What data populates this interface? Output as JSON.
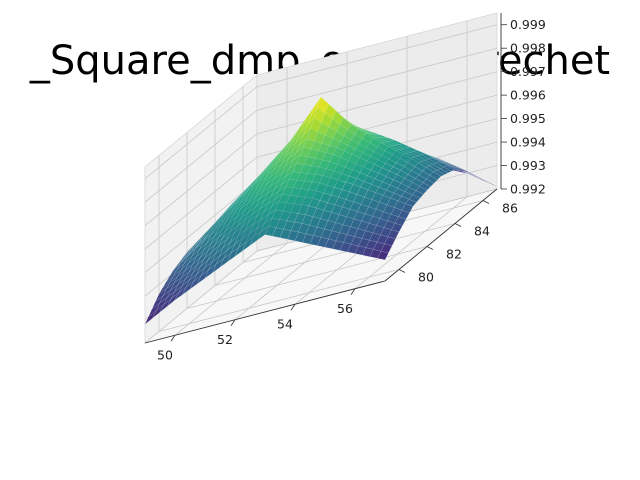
{
  "chart_data": {
    "type": "surface",
    "title": "_Square_dmp_on LTE Frechet",
    "xlabel": "",
    "ylabel": "",
    "zlabel": "",
    "x": [
      49,
      50,
      51,
      52,
      53,
      54,
      55,
      56,
      57
    ],
    "y": [
      79,
      80,
      81,
      82,
      83,
      84,
      85,
      86,
      87
    ],
    "xticks": [
      50,
      52,
      54,
      56
    ],
    "yticks": [
      80,
      82,
      84,
      86
    ],
    "zticks": [
      0.992,
      0.993,
      0.994,
      0.995,
      0.996,
      0.997,
      0.998,
      0.999
    ],
    "zlim": [
      0.992,
      0.9995
    ],
    "z": [
      [
        0.9928,
        0.9935,
        0.9941,
        0.9947,
        0.9953,
        0.9947,
        0.9941,
        0.9935,
        0.9929
      ],
      [
        0.9936,
        0.9942,
        0.995,
        0.9957,
        0.9962,
        0.9957,
        0.995,
        0.9943,
        0.9936
      ],
      [
        0.9941,
        0.995,
        0.9958,
        0.9965,
        0.997,
        0.9965,
        0.9958,
        0.995,
        0.9942
      ],
      [
        0.9944,
        0.9954,
        0.9963,
        0.9972,
        0.9979,
        0.9972,
        0.9963,
        0.9954,
        0.9944
      ],
      [
        0.9945,
        0.9956,
        0.9966,
        0.9977,
        0.9992,
        0.9977,
        0.9966,
        0.9956,
        0.9945
      ],
      [
        0.9943,
        0.9953,
        0.9962,
        0.997,
        0.9976,
        0.997,
        0.9962,
        0.9953,
        0.9943
      ],
      [
        0.9936,
        0.9946,
        0.9954,
        0.9961,
        0.9966,
        0.9961,
        0.9954,
        0.9946,
        0.9937
      ],
      [
        0.9928,
        0.9938,
        0.9946,
        0.9952,
        0.9955,
        0.9952,
        0.9946,
        0.9938,
        0.9929
      ],
      [
        0.9925,
        0.993,
        0.9936,
        0.9942,
        0.9944,
        0.9942,
        0.9936,
        0.993,
        0.9921
      ]
    ],
    "colormap": "viridis",
    "grid": true
  }
}
